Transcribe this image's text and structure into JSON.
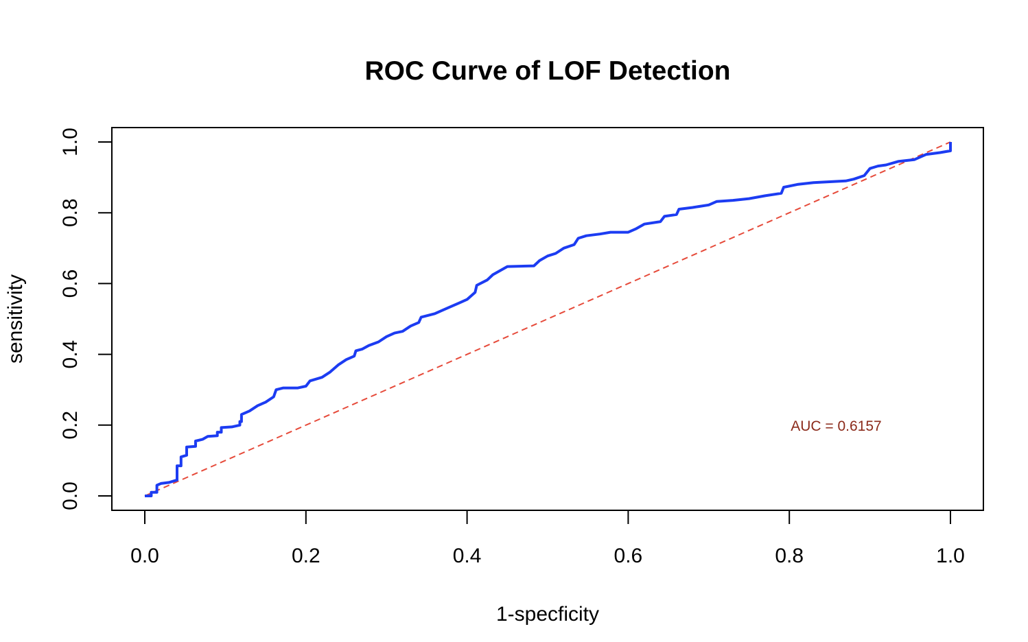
{
  "chart_data": {
    "type": "line",
    "title": "ROC Curve of LOF Detection",
    "xlabel": "1-specficity",
    "ylabel": "sensitivity",
    "xlim": [
      0,
      1
    ],
    "ylim": [
      0,
      1
    ],
    "x_ticks": [
      "0.0",
      "0.2",
      "0.4",
      "0.6",
      "0.8",
      "1.0"
    ],
    "y_ticks": [
      "0.0",
      "0.2",
      "0.4",
      "0.6",
      "0.8",
      "1.0"
    ],
    "x_tick_values": [
      0,
      0.2,
      0.4,
      0.6,
      0.8,
      1.0
    ],
    "y_tick_values": [
      0,
      0.2,
      0.4,
      0.6,
      0.8,
      1.0
    ],
    "grid": false,
    "annotation": {
      "text": "AUC =  0.6157",
      "x": 0.8,
      "y": 0.2,
      "color": "#8b2a1a"
    },
    "series": [
      {
        "style": "solid",
        "color": "#1c3cf2",
        "points": [
          [
            0.0,
            0.0
          ],
          [
            0.008,
            0.0
          ],
          [
            0.008,
            0.01
          ],
          [
            0.015,
            0.01
          ],
          [
            0.015,
            0.03
          ],
          [
            0.02,
            0.035
          ],
          [
            0.03,
            0.038
          ],
          [
            0.04,
            0.045
          ],
          [
            0.04,
            0.085
          ],
          [
            0.045,
            0.085
          ],
          [
            0.045,
            0.11
          ],
          [
            0.052,
            0.115
          ],
          [
            0.052,
            0.138
          ],
          [
            0.063,
            0.14
          ],
          [
            0.063,
            0.155
          ],
          [
            0.072,
            0.16
          ],
          [
            0.078,
            0.168
          ],
          [
            0.09,
            0.17
          ],
          [
            0.09,
            0.18
          ],
          [
            0.095,
            0.18
          ],
          [
            0.095,
            0.193
          ],
          [
            0.108,
            0.195
          ],
          [
            0.118,
            0.2
          ],
          [
            0.118,
            0.21
          ],
          [
            0.12,
            0.21
          ],
          [
            0.12,
            0.23
          ],
          [
            0.13,
            0.24
          ],
          [
            0.14,
            0.255
          ],
          [
            0.15,
            0.265
          ],
          [
            0.16,
            0.28
          ],
          [
            0.163,
            0.3
          ],
          [
            0.172,
            0.305
          ],
          [
            0.19,
            0.305
          ],
          [
            0.2,
            0.31
          ],
          [
            0.205,
            0.325
          ],
          [
            0.22,
            0.335
          ],
          [
            0.23,
            0.35
          ],
          [
            0.24,
            0.37
          ],
          [
            0.25,
            0.385
          ],
          [
            0.26,
            0.395
          ],
          [
            0.262,
            0.41
          ],
          [
            0.27,
            0.415
          ],
          [
            0.278,
            0.425
          ],
          [
            0.29,
            0.435
          ],
          [
            0.3,
            0.45
          ],
          [
            0.31,
            0.46
          ],
          [
            0.32,
            0.465
          ],
          [
            0.33,
            0.48
          ],
          [
            0.34,
            0.49
          ],
          [
            0.343,
            0.505
          ],
          [
            0.36,
            0.515
          ],
          [
            0.37,
            0.525
          ],
          [
            0.38,
            0.535
          ],
          [
            0.39,
            0.545
          ],
          [
            0.4,
            0.555
          ],
          [
            0.41,
            0.575
          ],
          [
            0.412,
            0.595
          ],
          [
            0.425,
            0.61
          ],
          [
            0.432,
            0.625
          ],
          [
            0.45,
            0.648
          ],
          [
            0.483,
            0.65
          ],
          [
            0.49,
            0.665
          ],
          [
            0.5,
            0.678
          ],
          [
            0.51,
            0.685
          ],
          [
            0.52,
            0.7
          ],
          [
            0.533,
            0.71
          ],
          [
            0.538,
            0.728
          ],
          [
            0.548,
            0.735
          ],
          [
            0.565,
            0.74
          ],
          [
            0.578,
            0.745
          ],
          [
            0.6,
            0.745
          ],
          [
            0.61,
            0.755
          ],
          [
            0.62,
            0.768
          ],
          [
            0.64,
            0.775
          ],
          [
            0.645,
            0.79
          ],
          [
            0.66,
            0.795
          ],
          [
            0.663,
            0.81
          ],
          [
            0.68,
            0.815
          ],
          [
            0.7,
            0.822
          ],
          [
            0.71,
            0.832
          ],
          [
            0.73,
            0.835
          ],
          [
            0.75,
            0.84
          ],
          [
            0.77,
            0.848
          ],
          [
            0.79,
            0.855
          ],
          [
            0.793,
            0.872
          ],
          [
            0.81,
            0.88
          ],
          [
            0.83,
            0.885
          ],
          [
            0.87,
            0.89
          ],
          [
            0.88,
            0.895
          ],
          [
            0.893,
            0.905
          ],
          [
            0.9,
            0.925
          ],
          [
            0.91,
            0.932
          ],
          [
            0.92,
            0.935
          ],
          [
            0.935,
            0.945
          ],
          [
            0.955,
            0.95
          ],
          [
            0.97,
            0.965
          ],
          [
            0.987,
            0.97
          ],
          [
            1.0,
            0.975
          ],
          [
            1.0,
            1.0
          ]
        ]
      },
      {
        "style": "dashed",
        "color": "#e64a3a",
        "points": [
          [
            0,
            0
          ],
          [
            1,
            1
          ]
        ]
      }
    ]
  }
}
